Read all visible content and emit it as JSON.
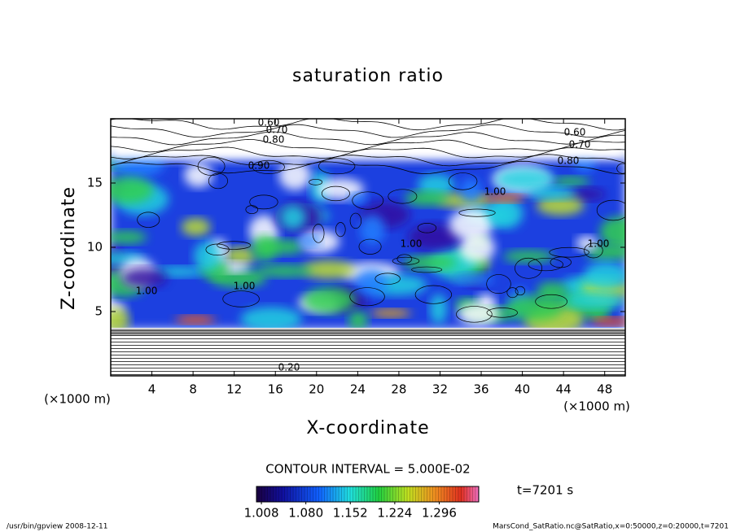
{
  "chart_data": {
    "type": "contour",
    "title": "saturation ratio",
    "x_label": "X-coordinate",
    "y_label": "Z-coordinate",
    "x_unit": "(×1000 m)",
    "y_unit": "(×1000 m)",
    "xlim": [
      0,
      50
    ],
    "xticks": [
      4,
      8,
      12,
      16,
      20,
      24,
      28,
      32,
      36,
      40,
      44,
      48
    ],
    "ylim": [
      0,
      20
    ],
    "yticks": [
      5,
      10,
      15
    ],
    "contour_interval": "CONTOUR INTERVAL = 5.000E-02",
    "time_label": "t=7201 s",
    "contour_labels": [
      "0.60",
      "0.70",
      "0.80",
      "0.60",
      "0.70",
      "0.80",
      "0.90",
      "1.00",
      "1.00",
      "1.00",
      "1.00",
      "1.00",
      "0.20"
    ],
    "colorbar": {
      "zlim": [
        1.0,
        1.36
      ],
      "ticks": [
        1.008,
        {
          "value": 1.08,
          "label": "1.080"
        },
        1.152,
        1.224,
        1.296
      ]
    },
    "footer_left": "/usr/bin/gpview   2008-12-11",
    "footer_right": "MarsCond_SatRatio.nc@SatRatio,x=0:50000,z=0:20000,t=7201"
  }
}
